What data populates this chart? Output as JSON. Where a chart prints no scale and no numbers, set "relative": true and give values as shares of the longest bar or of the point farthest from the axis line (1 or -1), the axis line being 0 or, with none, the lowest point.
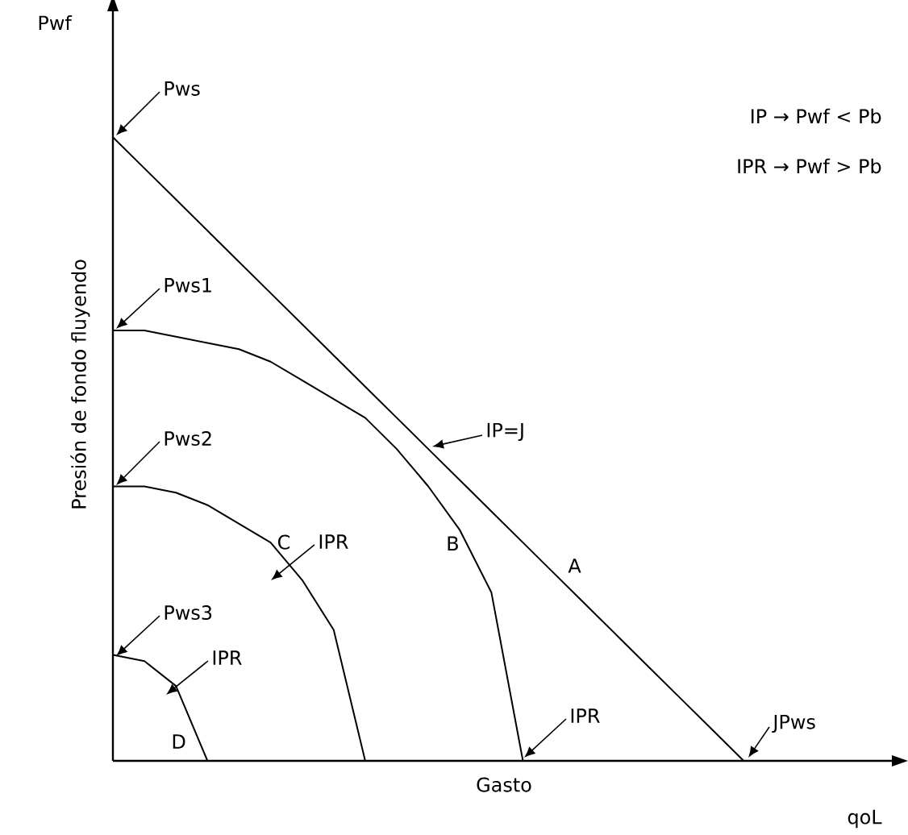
{
  "chart_data": {
    "type": "line",
    "relative": true,
    "xlabel": "Gasto",
    "ylabel": "Presión de fondo fluyendo",
    "categories": [
      null,
      null,
      null,
      null,
      null,
      null,
      null,
      null,
      null,
      null,
      null,
      null,
      null,
      null,
      null,
      null,
      null,
      null,
      null,
      null,
      null,
      null,
      null,
      null,
      null
    ],
    "series": [
      {
        "name": "A",
        "color": "#000000",
        "values": [
          1,
          0.95,
          0.9,
          0.85,
          0.8,
          0.75,
          0.7,
          0.65,
          0.6,
          0.55,
          0.5,
          0.45,
          0.4,
          0.35,
          0.3,
          0.25,
          0.2,
          0.15,
          0.1,
          0.05,
          0,
          null,
          null,
          null,
          null
        ]
      },
      {
        "name": "B",
        "color": "#000000",
        "values": [
          0.69,
          0.69,
          0.68,
          0.67,
          0.66,
          0.64,
          0.61,
          0.58,
          0.55,
          0.5,
          0.44,
          0.37,
          0.27,
          0,
          null,
          null,
          null,
          null,
          null,
          null,
          null,
          null,
          null,
          null,
          null
        ]
      },
      {
        "name": "C",
        "color": "#000000",
        "values": [
          0.44,
          0.44,
          0.43,
          0.41,
          0.38,
          0.35,
          0.29,
          0.21,
          0,
          null,
          null,
          null,
          null,
          null,
          null,
          null,
          null,
          null,
          null,
          null,
          null,
          null,
          null,
          null,
          null
        ]
      },
      {
        "name": "D",
        "color": "#000000",
        "values": [
          0.17,
          0.16,
          0.12,
          0,
          null,
          null,
          null,
          null,
          null,
          null,
          null,
          null,
          null,
          null,
          null,
          null,
          null,
          null,
          null,
          null,
          null,
          null,
          null,
          null,
          null
        ]
      }
    ],
    "annotations": [
      "Pwf",
      "qoL",
      "Pws",
      "Pws1",
      "Pws2",
      "Pws3",
      "IP=J",
      "IPR",
      "IPR",
      "IPR",
      "JPws",
      "IP → Pwf < Pb",
      "IPR → Pwf > Pb"
    ]
  }
}
